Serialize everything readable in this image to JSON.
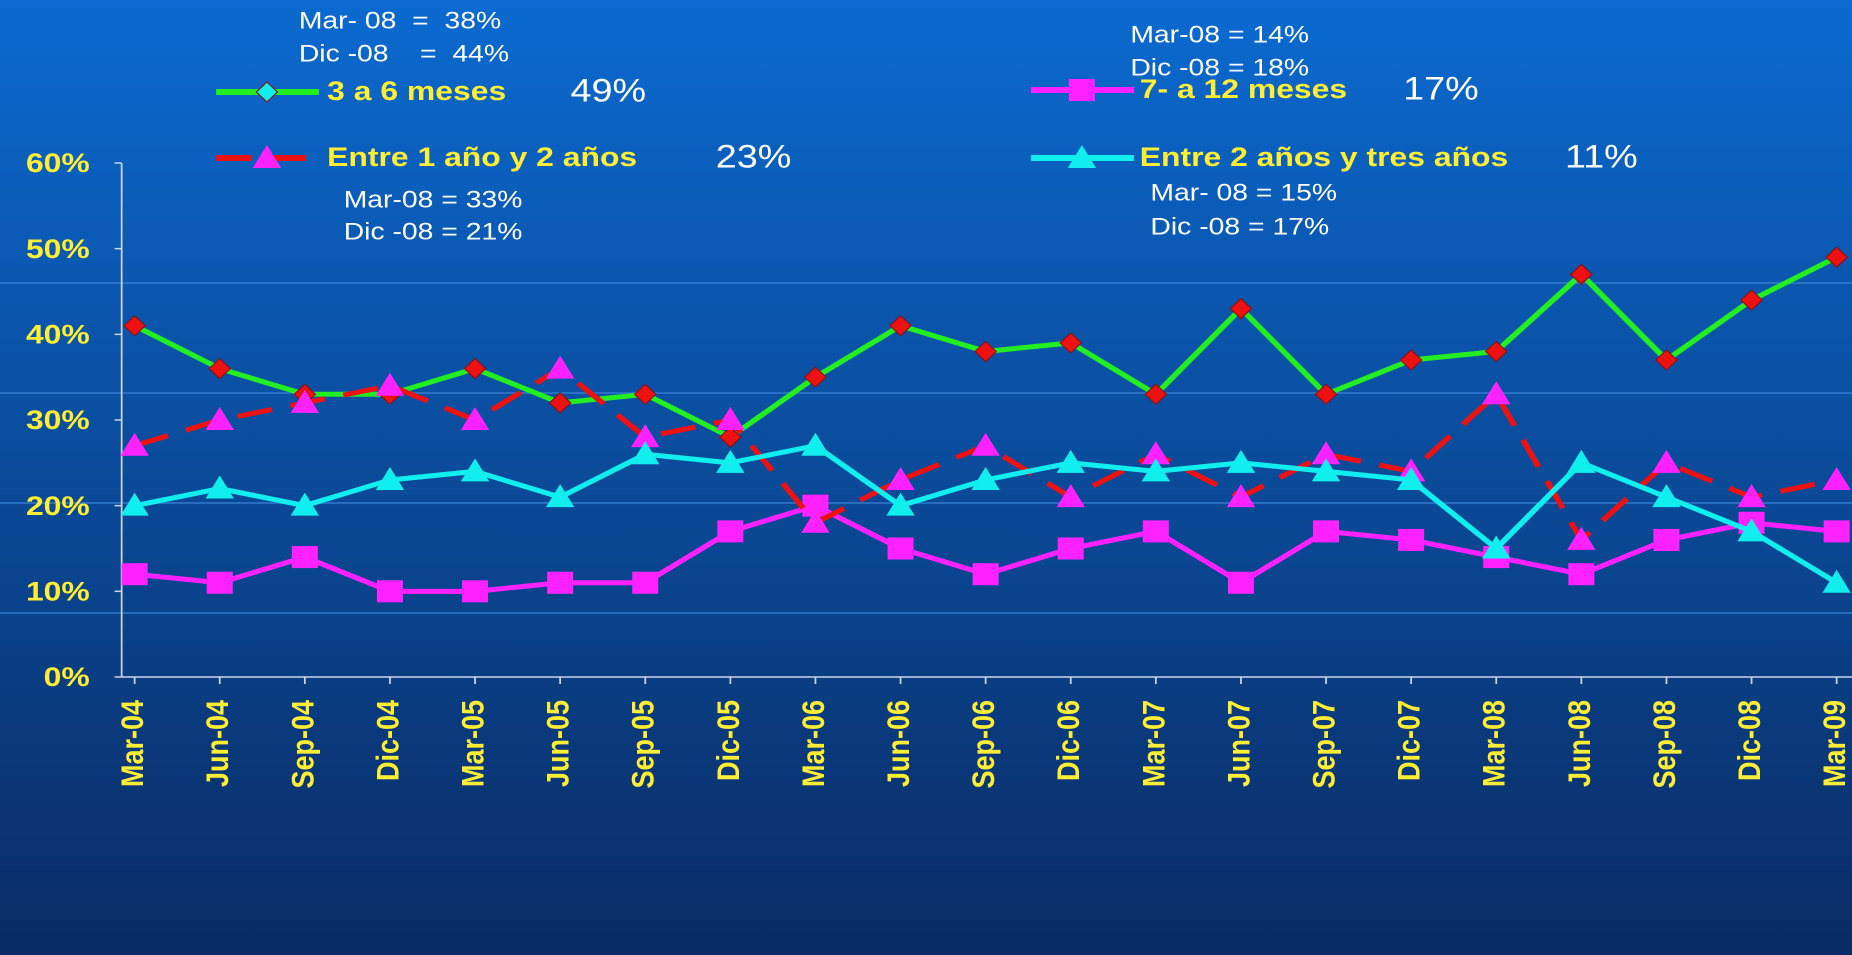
{
  "chart_data": {
    "type": "line",
    "categories": [
      "Mar-04",
      "Jun-04",
      "Sep-04",
      "Dic-04",
      "Mar-05",
      "Jun-05",
      "Sep-05",
      "Dic-05",
      "Mar-06",
      "Jun-06",
      "Sep-06",
      "Dic-06",
      "Mar-07",
      "Jun-07",
      "Sep-07",
      "Dic-07",
      "Mar-08",
      "Jun-08",
      "Sep-08",
      "Dic-08",
      "Mar-09"
    ],
    "ylim": [
      0,
      60
    ],
    "yticks": [
      {
        "value": 0,
        "label": "0%"
      },
      {
        "value": 10,
        "label": "10%"
      },
      {
        "value": 20,
        "label": "20%"
      },
      {
        "value": 30,
        "label": "30%"
      },
      {
        "value": 40,
        "label": "40%"
      },
      {
        "value": 50,
        "label": "50%"
      },
      {
        "value": 60,
        "label": "60%"
      }
    ],
    "series": [
      {
        "name": "3 a 6 meses",
        "color": "#22ee22",
        "marker": "diamond",
        "marker_color": "#ee1111",
        "dashed": false,
        "values": [
          41,
          36,
          33,
          33,
          36,
          32,
          33,
          28,
          35,
          41,
          38,
          39,
          33,
          43,
          33,
          37,
          38,
          47,
          37,
          44,
          49
        ]
      },
      {
        "name": "7- a 12 meses",
        "color": "#ff22ff",
        "marker": "square",
        "marker_color": "#ff22ff",
        "dashed": false,
        "values": [
          12,
          11,
          14,
          10,
          10,
          11,
          11,
          17,
          20,
          15,
          12,
          15,
          17,
          11,
          17,
          16,
          14,
          12,
          16,
          18,
          17
        ]
      },
      {
        "name": "Entre 1 año y 2 años",
        "color": "#ee1111",
        "marker": "triangle",
        "marker_color": "#ff22ff",
        "dashed": true,
        "values": [
          27,
          30,
          32,
          34,
          30,
          36,
          28,
          30,
          18,
          23,
          27,
          21,
          26,
          21,
          26,
          24,
          33,
          16,
          25,
          21,
          23
        ]
      },
      {
        "name": "Entre 2 años y tres años",
        "color": "#11eeee",
        "marker": "triangle",
        "marker_color": "#11eeee",
        "dashed": false,
        "values": [
          20,
          22,
          20,
          23,
          24,
          21,
          26,
          25,
          27,
          20,
          23,
          25,
          24,
          25,
          24,
          23,
          15,
          25,
          21,
          17,
          11
        ]
      }
    ],
    "legend_values": [
      "49%",
      "17%",
      "23%",
      "11%"
    ],
    "annotations": [
      "Mar- 08  =  38%",
      "Dic -08    =  44%",
      "Mar-08 = 14%",
      "Dic -08 = 18%",
      "Mar-08 = 33%",
      "Dic -08 = 21%",
      "Mar- 08 = 15%",
      "Dic -08 = 17%"
    ]
  }
}
